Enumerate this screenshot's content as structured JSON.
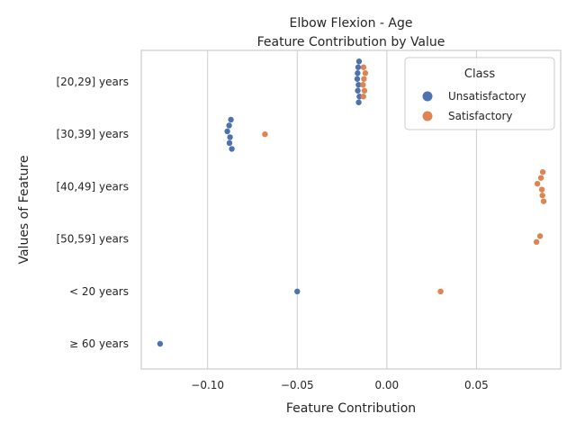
{
  "chart_data": {
    "type": "scatter",
    "title": "Elbow Flexion - Age",
    "subtitle": "Feature Contribution by Value",
    "xlabel": "Feature Contribution",
    "ylabel": "Values of Feature",
    "xlim": [
      -0.137,
      0.097
    ],
    "xticks": [
      -0.1,
      -0.05,
      0.0,
      0.05
    ],
    "xtick_labels": [
      "−0.10",
      "−0.05",
      "0.00",
      "0.05"
    ],
    "categories": [
      "[20,29] years",
      "[30,39] years",
      "[40,49] years",
      "[50,59] years",
      "< 20 years",
      "≥ 60 years"
    ],
    "grid": true,
    "legend": {
      "title": "Class",
      "placement": "top-right"
    },
    "series": [
      {
        "name": "Unsatisfactory",
        "color": "#4c72b0",
        "points": [
          {
            "category": "[20,29] years",
            "x": -0.0155
          },
          {
            "category": "[20,29] years",
            "x": -0.016
          },
          {
            "category": "[20,29] years",
            "x": -0.0163
          },
          {
            "category": "[20,29] years",
            "x": -0.0165
          },
          {
            "category": "[20,29] years",
            "x": -0.0158
          },
          {
            "category": "[20,29] years",
            "x": -0.0162
          },
          {
            "category": "[20,29] years",
            "x": -0.0153
          },
          {
            "category": "[20,29] years",
            "x": -0.0157
          },
          {
            "category": "[30,39] years",
            "x": -0.087
          },
          {
            "category": "[30,39] years",
            "x": -0.088
          },
          {
            "category": "[30,39] years",
            "x": -0.089
          },
          {
            "category": "[30,39] years",
            "x": -0.0875
          },
          {
            "category": "[30,39] years",
            "x": -0.0878
          },
          {
            "category": "[30,39] years",
            "x": -0.0865
          },
          {
            "category": "< 20 years",
            "x": -0.05
          },
          {
            "category": "≥ 60 years",
            "x": -0.1265
          }
        ]
      },
      {
        "name": "Satisfactory",
        "color": "#dd8452",
        "points": [
          {
            "category": "[20,29] years",
            "x": -0.013
          },
          {
            "category": "[20,29] years",
            "x": -0.012
          },
          {
            "category": "[20,29] years",
            "x": -0.0128
          },
          {
            "category": "[20,29] years",
            "x": -0.0133
          },
          {
            "category": "[20,29] years",
            "x": -0.0125
          },
          {
            "category": "[20,29] years",
            "x": -0.0131
          },
          {
            "category": "[30,39] years",
            "x": -0.068
          },
          {
            "category": "[40,49] years",
            "x": 0.087
          },
          {
            "category": "[40,49] years",
            "x": 0.086
          },
          {
            "category": "[40,49] years",
            "x": 0.084
          },
          {
            "category": "[40,49] years",
            "x": 0.0865
          },
          {
            "category": "[40,49] years",
            "x": 0.0868
          },
          {
            "category": "[40,49] years",
            "x": 0.0875
          },
          {
            "category": "[50,59] years",
            "x": 0.0855
          },
          {
            "category": "[50,59] years",
            "x": 0.0835
          },
          {
            "category": "< 20 years",
            "x": 0.03
          }
        ]
      }
    ]
  }
}
